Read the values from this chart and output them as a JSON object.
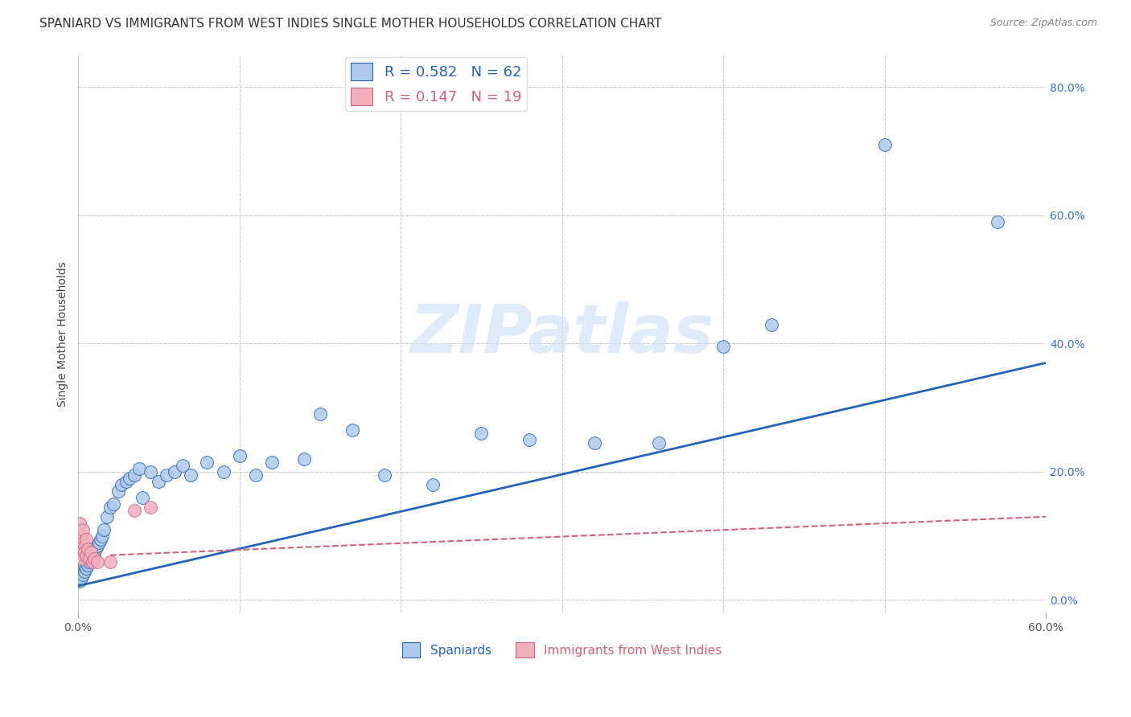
{
  "title": "SPANIARD VS IMMIGRANTS FROM WEST INDIES SINGLE MOTHER HOUSEHOLDS CORRELATION CHART",
  "source": "Source: ZipAtlas.com",
  "ylabel": "Single Mother Households",
  "xlim": [
    0.0,
    0.6
  ],
  "ylim": [
    -0.02,
    0.85
  ],
  "xticks": [
    0.0,
    0.6
  ],
  "xtick_labels": [
    "0.0%",
    "60.0%"
  ],
  "yticks": [
    0.0,
    0.2,
    0.4,
    0.6,
    0.8
  ],
  "ytick_labels": [
    "0.0%",
    "20.0%",
    "40.0%",
    "60.0%",
    "80.0%"
  ],
  "grid_yticks": [
    0.0,
    0.2,
    0.4,
    0.6,
    0.8
  ],
  "R_spaniards": 0.582,
  "N_spaniards": 62,
  "R_westindies": 0.147,
  "N_westindies": 19,
  "spaniards_color": "#aec9ed",
  "westindies_color": "#f2afc0",
  "line_spaniards_color": "#2563b8",
  "line_westindies_color": "#d4607a",
  "spaniards_x": [
    0.001,
    0.001,
    0.002,
    0.002,
    0.002,
    0.003,
    0.003,
    0.003,
    0.004,
    0.004,
    0.005,
    0.005,
    0.005,
    0.006,
    0.006,
    0.007,
    0.007,
    0.008,
    0.008,
    0.009,
    0.009,
    0.01,
    0.011,
    0.012,
    0.013,
    0.014,
    0.015,
    0.016,
    0.018,
    0.02,
    0.022,
    0.025,
    0.027,
    0.03,
    0.032,
    0.035,
    0.038,
    0.04,
    0.045,
    0.05,
    0.055,
    0.06,
    0.065,
    0.07,
    0.08,
    0.09,
    0.1,
    0.11,
    0.12,
    0.14,
    0.15,
    0.17,
    0.19,
    0.22,
    0.25,
    0.28,
    0.32,
    0.36,
    0.4,
    0.43,
    0.5,
    0.57
  ],
  "spaniards_y": [
    0.03,
    0.045,
    0.035,
    0.05,
    0.06,
    0.04,
    0.055,
    0.065,
    0.045,
    0.055,
    0.05,
    0.06,
    0.07,
    0.055,
    0.065,
    0.06,
    0.07,
    0.065,
    0.08,
    0.065,
    0.075,
    0.07,
    0.08,
    0.085,
    0.09,
    0.095,
    0.1,
    0.11,
    0.13,
    0.145,
    0.15,
    0.17,
    0.18,
    0.185,
    0.19,
    0.195,
    0.205,
    0.16,
    0.2,
    0.185,
    0.195,
    0.2,
    0.21,
    0.195,
    0.215,
    0.2,
    0.225,
    0.195,
    0.215,
    0.22,
    0.29,
    0.265,
    0.195,
    0.18,
    0.26,
    0.25,
    0.245,
    0.245,
    0.395,
    0.43,
    0.71,
    0.59
  ],
  "westindies_x": [
    0.001,
    0.001,
    0.002,
    0.002,
    0.003,
    0.003,
    0.004,
    0.004,
    0.005,
    0.005,
    0.006,
    0.007,
    0.008,
    0.009,
    0.01,
    0.012,
    0.02,
    0.035,
    0.045
  ],
  "westindies_y": [
    0.12,
    0.08,
    0.1,
    0.065,
    0.09,
    0.11,
    0.085,
    0.075,
    0.095,
    0.07,
    0.08,
    0.065,
    0.075,
    0.06,
    0.065,
    0.06,
    0.06,
    0.14,
    0.145
  ],
  "trendline_x_start": 0.0,
  "trendline_x_end": 0.6,
  "trendline_blue_y_start": 0.022,
  "trendline_blue_y_end": 0.37,
  "trendline_pink_y_start": 0.07,
  "trendline_pink_y_end": 0.13,
  "legend_labels": [
    "Spaniards",
    "Immigrants from West Indies"
  ],
  "background_color": "#ffffff",
  "grid_color": "#cccccc",
  "title_fontsize": 11,
  "axis_label_fontsize": 10,
  "tick_fontsize": 10,
  "right_tick_color": "#3b73c0",
  "watermark_color": "#ccdff5",
  "watermark_alpha": 0.6
}
